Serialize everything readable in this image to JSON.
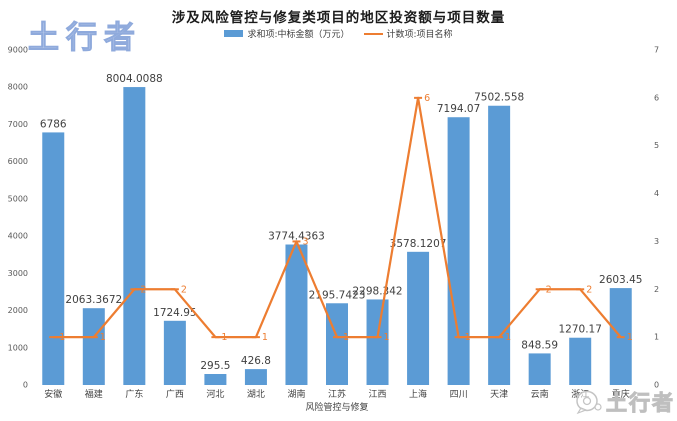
{
  "header": {
    "title": "涉及风险管控与修复类项目的地区投资额与项目数量"
  },
  "watermarks": {
    "top_left": "土行者",
    "bottom_right": "土行者"
  },
  "legend": [
    {
      "label": "求和项:中标金额（万元）",
      "type": "bar",
      "color": "#5B9BD5"
    },
    {
      "label": "计数项:项目名称",
      "type": "line",
      "color": "#ED7D31"
    }
  ],
  "chart_data": {
    "type": "bar",
    "combo": "bar+line dual-axis",
    "title": "涉及风险管控与修复类项目的地区投资额与项目数量",
    "xlabel": "风险管控与修复",
    "legend_position": "top",
    "grid": false,
    "categories": [
      "安徽",
      "福建",
      "广东",
      "广西",
      "河北",
      "湖北",
      "湖南",
      "江苏",
      "江西",
      "上海",
      "四川",
      "天津",
      "云南",
      "浙江",
      "重庆"
    ],
    "series": [
      {
        "name": "求和项:中标金额（万元）",
        "type": "bar",
        "axis": "left",
        "color": "#5B9BD5",
        "values": [
          6786,
          2063.3672,
          8004.0088,
          1724.95,
          295.5,
          426.8,
          3774.4363,
          2195.7423,
          2298.342,
          3578.1207,
          7194.07,
          7502.558,
          848.59,
          1270.17,
          2603.45
        ],
        "labels": [
          "6786",
          "2063.3672",
          "8004.0088",
          "1724.95",
          "295.5",
          "426.8",
          "3774.4363",
          "2195.7423",
          "2298.342",
          "3578.1207",
          "7194.07",
          "7502.558",
          "848.59",
          "1270.17",
          "2603.45"
        ]
      },
      {
        "name": "计数项:项目名称",
        "type": "line",
        "axis": "right",
        "color": "#ED7D31",
        "values": [
          1,
          1,
          2,
          2,
          1,
          1,
          3,
          1,
          1,
          6,
          1,
          1,
          2,
          2,
          1
        ]
      }
    ],
    "left_axis": {
      "min": 0,
      "max": 9000,
      "step": 1000
    },
    "right_axis": {
      "min": 0,
      "max": 7,
      "step": 1
    }
  }
}
